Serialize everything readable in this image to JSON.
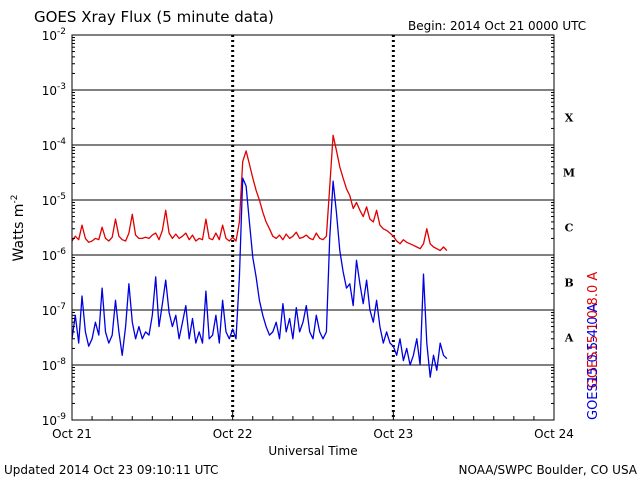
{
  "chart_data": {
    "type": "line",
    "title": "GOES Xray Flux (5 minute data)",
    "begin_label": "Begin:  2014 Oct 21 0000 UTC",
    "xlabel": "Universal Time",
    "ylabel": "Watts m",
    "ylabel_sup": "-2",
    "y_scale": "log",
    "ylim": [
      1e-09,
      0.01
    ],
    "y_ticks": [
      {
        "base": "10",
        "exp": "-9"
      },
      {
        "base": "10",
        "exp": "-8"
      },
      {
        "base": "10",
        "exp": "-7"
      },
      {
        "base": "10",
        "exp": "-6"
      },
      {
        "base": "10",
        "exp": "-5"
      },
      {
        "base": "10",
        "exp": "-4"
      },
      {
        "base": "10",
        "exp": "-3"
      },
      {
        "base": "10",
        "exp": "-2"
      }
    ],
    "xlim": [
      0,
      72
    ],
    "x_unit": "hours since 2014 Oct 21 0000 UTC",
    "x_ticks": [
      "Oct 21",
      "Oct 22",
      "Oct 23",
      "Oct 24"
    ],
    "flare_classes": [
      "A",
      "B",
      "C",
      "M",
      "X"
    ],
    "grid": true,
    "series": [
      {
        "name": "GOES15 1.0-8.0 A",
        "color": "#e00000",
        "x": [
          0.0,
          0.5,
          1.0,
          1.5,
          2.0,
          2.5,
          3.0,
          3.5,
          4.0,
          4.5,
          5.0,
          5.5,
          6.0,
          6.5,
          7.0,
          7.5,
          8.0,
          8.5,
          9.0,
          9.5,
          10.0,
          10.5,
          11.0,
          11.5,
          12.0,
          12.5,
          13.0,
          13.5,
          14.0,
          14.5,
          15.0,
          15.5,
          16.0,
          16.5,
          17.0,
          17.5,
          18.0,
          18.5,
          19.0,
          19.5,
          20.0,
          20.5,
          21.0,
          21.5,
          22.0,
          22.5,
          23.0,
          23.5,
          24.0,
          24.5,
          25.0,
          25.5,
          26.0,
          26.5,
          27.0,
          27.5,
          28.0,
          28.5,
          29.0,
          29.5,
          30.0,
          30.5,
          31.0,
          31.5,
          32.0,
          32.5,
          33.0,
          33.5,
          34.0,
          34.5,
          35.0,
          35.5,
          36.0,
          36.5,
          37.0,
          37.5,
          38.0,
          38.5,
          39.0,
          39.5,
          40.0,
          40.5,
          41.0,
          41.5,
          42.0,
          42.5,
          43.0,
          43.5,
          44.0,
          44.5,
          45.0,
          45.5,
          46.0,
          46.5,
          47.0,
          47.5,
          48.0,
          48.5,
          49.0,
          49.5,
          50.0,
          50.5,
          51.0,
          51.5,
          52.0,
          52.5,
          53.0,
          53.5,
          54.0,
          54.5,
          55.0,
          55.5,
          56.0
        ],
        "y": [
          1.8e-06,
          2.2e-06,
          1.9e-06,
          3.5e-06,
          2e-06,
          1.7e-06,
          1.8e-06,
          2e-06,
          1.9e-06,
          3.2e-06,
          2e-06,
          1.8e-06,
          2.1e-06,
          4.5e-06,
          2.2e-06,
          1.9e-06,
          1.8e-06,
          2.5e-06,
          5.5e-06,
          2.3e-06,
          2e-06,
          2e-06,
          2.1e-06,
          2e-06,
          2.3e-06,
          2.5e-06,
          1.9e-06,
          2.8e-06,
          6.5e-06,
          2.5e-06,
          2e-06,
          2.4e-06,
          2e-06,
          2.2e-06,
          2.5e-06,
          1.9e-06,
          2.3e-06,
          1.8e-06,
          2e-06,
          1.9e-06,
          4.5e-06,
          2e-06,
          1.9e-06,
          2.5e-06,
          1.9e-06,
          3.5e-06,
          2e-06,
          1.8e-06,
          2.1e-06,
          1.8e-06,
          4e-06,
          5e-05,
          7.8e-05,
          4.5e-05,
          2.5e-05,
          1.5e-05,
          1e-05,
          6e-06,
          4e-06,
          3e-06,
          2.2e-06,
          2e-06,
          2.3e-06,
          1.9e-06,
          2.4e-06,
          2e-06,
          2.2e-06,
          2.6e-06,
          2e-06,
          2.1e-06,
          2.3e-06,
          2e-06,
          1.9e-06,
          2.5e-06,
          2e-06,
          1.9e-06,
          2.2e-06,
          1.7e-05,
          0.00015,
          8e-05,
          4e-05,
          2.5e-05,
          1.6e-05,
          1.2e-05,
          7e-06,
          9e-06,
          6.5e-06,
          5e-06,
          7.5e-06,
          4.5e-06,
          4e-06,
          6.5e-06,
          3.5e-06,
          3e-06,
          2.8e-06,
          2.5e-06,
          2.2e-06,
          1.8e-06,
          1.6e-06,
          1.9e-06,
          1.7e-06,
          1.6e-06,
          1.5e-06,
          1.4e-06,
          1.3e-06,
          1.6e-06,
          3e-06,
          1.6e-06,
          1.4e-06,
          1.3e-06,
          1.2e-06,
          1.4e-06,
          1.2e-06
        ]
      },
      {
        "name": "GOES15 0.5-4.0 A",
        "color": "#0000e0",
        "x": [
          0.0,
          0.5,
          1.0,
          1.5,
          2.0,
          2.5,
          3.0,
          3.5,
          4.0,
          4.5,
          5.0,
          5.5,
          6.0,
          6.5,
          7.0,
          7.5,
          8.0,
          8.5,
          9.0,
          9.5,
          10.0,
          10.5,
          11.0,
          11.5,
          12.0,
          12.5,
          13.0,
          13.5,
          14.0,
          14.5,
          15.0,
          15.5,
          16.0,
          16.5,
          17.0,
          17.5,
          18.0,
          18.5,
          19.0,
          19.5,
          20.0,
          20.5,
          21.0,
          21.5,
          22.0,
          22.5,
          23.0,
          23.5,
          24.0,
          24.5,
          25.0,
          25.5,
          26.0,
          26.5,
          27.0,
          27.5,
          28.0,
          28.5,
          29.0,
          29.5,
          30.0,
          30.5,
          31.0,
          31.5,
          32.0,
          32.5,
          33.0,
          33.5,
          34.0,
          34.5,
          35.0,
          35.5,
          36.0,
          36.5,
          37.0,
          37.5,
          38.0,
          38.5,
          39.0,
          39.5,
          40.0,
          40.5,
          41.0,
          41.5,
          42.0,
          42.5,
          43.0,
          43.5,
          44.0,
          44.5,
          45.0,
          45.5,
          46.0,
          46.5,
          47.0,
          47.5,
          48.0,
          48.5,
          49.0,
          49.5,
          50.0,
          50.5,
          51.0,
          51.5,
          52.0,
          52.5,
          53.0,
          53.5,
          54.0,
          54.5,
          55.0,
          55.5,
          56.0
        ],
        "y": [
          3e-08,
          8e-08,
          2.5e-08,
          1.8e-07,
          4e-08,
          2.2e-08,
          3e-08,
          6e-08,
          3.5e-08,
          2.5e-07,
          4e-08,
          2.5e-08,
          3.5e-08,
          1.5e-07,
          4e-08,
          1.5e-08,
          5e-08,
          3e-07,
          6e-08,
          3e-08,
          5e-08,
          3e-08,
          4e-08,
          3.5e-08,
          8e-08,
          4e-07,
          5e-08,
          1.3e-07,
          3.5e-07,
          9e-08,
          5e-08,
          8e-08,
          3e-08,
          6e-08,
          1.2e-07,
          3e-08,
          7e-08,
          2.5e-08,
          4e-08,
          2.5e-08,
          2.2e-07,
          3e-08,
          3.5e-08,
          8e-08,
          2.5e-08,
          1.5e-07,
          4e-08,
          3e-08,
          4.5e-08,
          3e-08,
          4e-07,
          2.5e-05,
          1.8e-05,
          4e-06,
          9e-07,
          4e-07,
          1.5e-07,
          8e-08,
          5e-08,
          3.5e-08,
          4e-08,
          6e-08,
          3e-08,
          1.3e-07,
          4e-08,
          7e-08,
          3e-08,
          1.1e-07,
          4e-08,
          6e-08,
          1.2e-07,
          4e-08,
          3e-08,
          8e-08,
          4e-08,
          3e-08,
          4e-08,
          2e-06,
          2.2e-05,
          6e-06,
          1.2e-06,
          5e-07,
          2.5e-07,
          3e-07,
          1.2e-07,
          8e-07,
          3e-07,
          1.3e-07,
          3.5e-07,
          1e-07,
          6e-08,
          1.5e-07,
          5e-08,
          2.5e-08,
          4e-08,
          2.5e-08,
          2.2e-08,
          1.5e-08,
          3e-08,
          1.2e-08,
          2e-08,
          1e-08,
          1.5e-08,
          3e-08,
          1e-08,
          4.5e-07,
          2.5e-08,
          6e-09,
          1.5e-08,
          8e-09,
          2.5e-08,
          1.5e-08,
          1.3e-08
        ]
      }
    ]
  },
  "footer": {
    "updated": "Updated 2014 Oct 23 09:10:11 UTC",
    "credit": "NOAA/SWPC Boulder, CO USA"
  }
}
